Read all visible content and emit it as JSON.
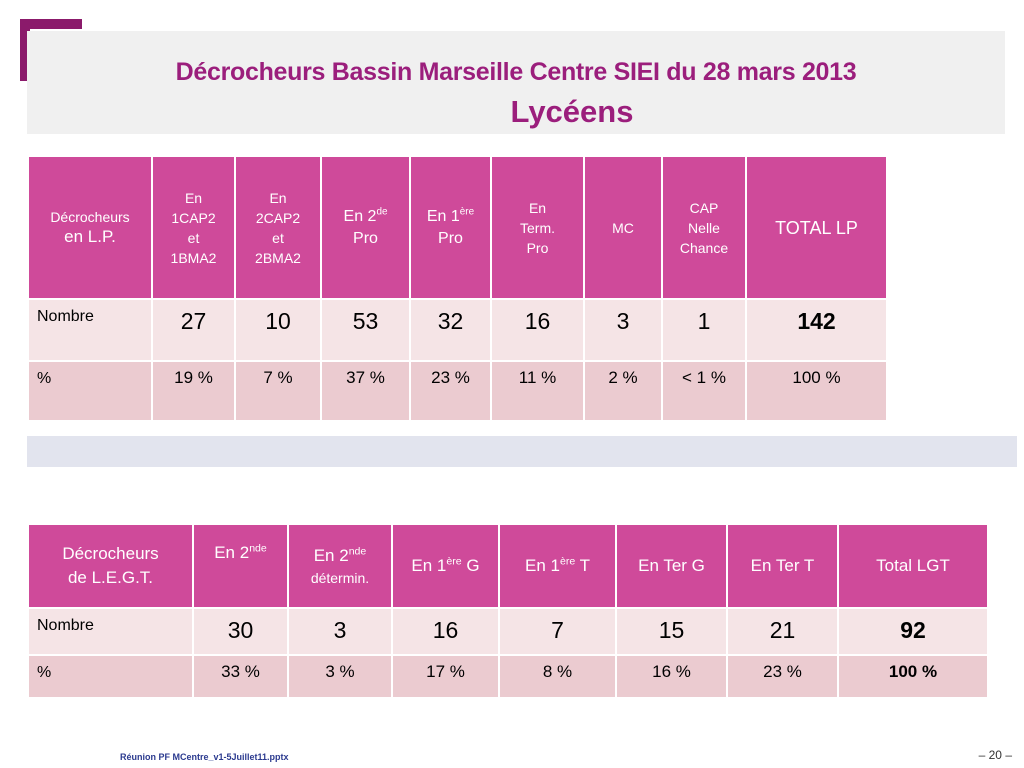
{
  "title": {
    "line1": "Décrocheurs Bassin Marseille Centre SIEI du 28 mars 2013",
    "line2": "Lycéens"
  },
  "table_lp": {
    "header": {
      "col0_small": "Décrocheurs",
      "col0_big": "en L.P.",
      "col1": [
        "En",
        "1CAP2",
        "et",
        "1BMA2"
      ],
      "col2": [
        "En",
        "2CAP2",
        "et",
        "2BMA2"
      ],
      "col3_pre": "En 2",
      "col3_sup": "de",
      "col3_post": "Pro",
      "col4_pre": "En 1",
      "col4_sup": "ère",
      "col4_post": "Pro",
      "col5": [
        "En",
        "Term.",
        "Pro"
      ],
      "col6": "MC",
      "col7": [
        "CAP",
        "Nelle",
        "Chance"
      ],
      "col8": "TOTAL LP"
    },
    "nombre_label": "Nombre",
    "nombre": [
      "27",
      "10",
      "53",
      "32",
      "16",
      "3",
      "1",
      "142"
    ],
    "pct_label": "%",
    "pct": [
      "19 %",
      "7 %",
      "37 %",
      "23 %",
      "11 %",
      "2 %",
      "< 1 %",
      "100 %"
    ]
  },
  "table_lgt": {
    "header": {
      "col0": [
        "Décrocheurs",
        "de L.E.G.T."
      ],
      "col1_pre": "En 2",
      "col1_sup": "nde",
      "col2_pre": "En 2",
      "col2_sup": "nde",
      "col2_post": "détermin.",
      "col3_pre": "En 1",
      "col3_sup": "ère",
      "col3_post": " G",
      "col4_pre": "En 1",
      "col4_sup": "ère",
      "col4_post": " T",
      "col5": "En Ter G",
      "col6": "En Ter T",
      "col7": "Total LGT"
    },
    "nombre_label": "Nombre",
    "nombre": [
      "30",
      "3",
      "16",
      "7",
      "15",
      "21",
      "92"
    ],
    "pct_label": "%",
    "pct": [
      "33 %",
      "3 %",
      "17 %",
      "8 %",
      "16 %",
      "23 %",
      "100 %"
    ]
  },
  "footer": {
    "left": "Réunion PF MCentre_v1-5Juillet11.pptx",
    "right": "– 20 –"
  },
  "colors": {
    "title": "#9b1e7c",
    "header_bg": "#cf4a9a",
    "row_light": "#f5e4e6",
    "row_dark": "#ebcbd0",
    "bracket": "#8b1a6b"
  }
}
